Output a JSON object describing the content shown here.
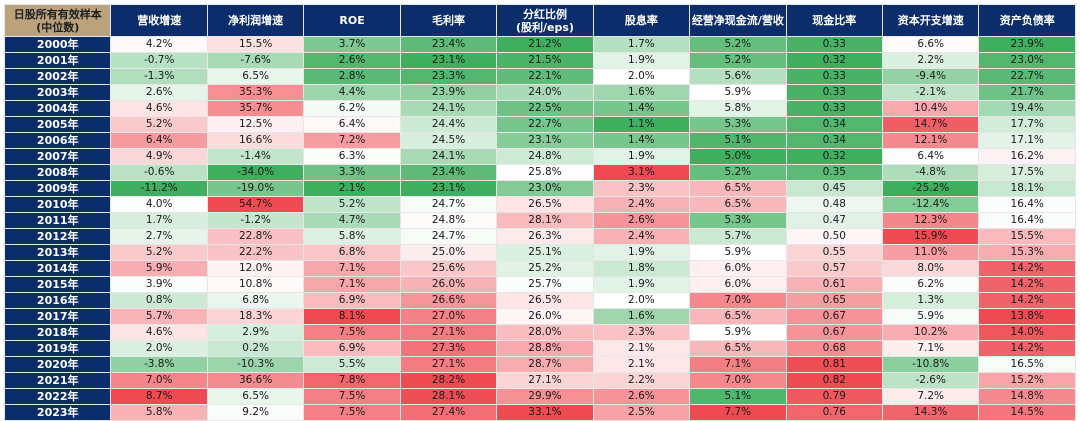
{
  "colors": {
    "header_bg": "#0c2d6b",
    "corner_bg": "#b9a27c",
    "high": "#3fae5e",
    "low": "#ee4a52",
    "mid": "#ffffff"
  },
  "chart_data": {
    "type": "table",
    "title_line1": "日股所有有效样本",
    "title_line2": "(中位数)",
    "columns": [
      {
        "line1": "营收增速",
        "line2": "",
        "fmt": "pct",
        "dir": "low_green"
      },
      {
        "line1": "净利润增速",
        "line2": "",
        "fmt": "pct",
        "dir": "low_green"
      },
      {
        "line1": "ROE",
        "line2": "",
        "fmt": "pct",
        "dir": "low_green"
      },
      {
        "line1": "毛利率",
        "line2": "",
        "fmt": "pct",
        "dir": "low_green"
      },
      {
        "line1": "分红比例",
        "line2": "(股利/eps)",
        "fmt": "pct",
        "dir": "low_green"
      },
      {
        "line1": "股息率",
        "line2": "",
        "fmt": "pct",
        "dir": "low_green"
      },
      {
        "line1": "经营净现金流/营收",
        "line2": "",
        "fmt": "pct",
        "dir": "low_green"
      },
      {
        "line1": "现金比率",
        "line2": "",
        "fmt": "num",
        "dir": "low_green"
      },
      {
        "line1": "资本开支增速",
        "line2": "",
        "fmt": "pct",
        "dir": "low_green"
      },
      {
        "line1": "资产负债率",
        "line2": "",
        "fmt": "pct",
        "dir": "high_green"
      }
    ],
    "rows": [
      {
        "year": "2000年",
        "values": [
          4.2,
          15.5,
          3.7,
          23.4,
          21.2,
          1.7,
          5.2,
          0.33,
          6.6,
          23.9
        ]
      },
      {
        "year": "2001年",
        "values": [
          -0.7,
          -7.6,
          2.6,
          23.1,
          21.5,
          1.9,
          5.2,
          0.32,
          2.2,
          23.0
        ]
      },
      {
        "year": "2002年",
        "values": [
          -1.3,
          6.5,
          2.8,
          23.3,
          22.1,
          2.0,
          5.6,
          0.33,
          -9.4,
          22.7
        ]
      },
      {
        "year": "2003年",
        "values": [
          2.6,
          35.3,
          4.4,
          23.9,
          24.0,
          1.6,
          5.9,
          0.33,
          -2.1,
          21.7
        ]
      },
      {
        "year": "2004年",
        "values": [
          4.6,
          35.7,
          6.2,
          24.1,
          22.5,
          1.4,
          5.8,
          0.33,
          10.4,
          19.4
        ]
      },
      {
        "year": "2005年",
        "values": [
          5.2,
          12.5,
          6.4,
          24.4,
          22.7,
          1.1,
          5.3,
          0.34,
          14.7,
          17.7
        ]
      },
      {
        "year": "2006年",
        "values": [
          6.4,
          16.6,
          7.2,
          24.5,
          23.1,
          1.4,
          5.1,
          0.34,
          12.1,
          17.1
        ]
      },
      {
        "year": "2007年",
        "values": [
          4.9,
          -1.4,
          6.3,
          24.1,
          24.8,
          1.9,
          5.0,
          0.32,
          6.4,
          16.2
        ]
      },
      {
        "year": "2008年",
        "values": [
          -0.6,
          -34.0,
          3.3,
          23.4,
          25.8,
          3.1,
          5.2,
          0.35,
          -4.8,
          17.5
        ]
      },
      {
        "year": "2009年",
        "values": [
          -11.2,
          -19.0,
          2.1,
          23.1,
          23.0,
          2.3,
          6.5,
          0.45,
          -25.2,
          18.1
        ]
      },
      {
        "year": "2010年",
        "values": [
          4.0,
          54.7,
          5.2,
          24.7,
          26.5,
          2.4,
          6.5,
          0.48,
          -12.4,
          16.4
        ]
      },
      {
        "year": "2011年",
        "values": [
          1.7,
          -1.2,
          4.7,
          24.8,
          28.1,
          2.6,
          5.3,
          0.47,
          12.3,
          16.4
        ]
      },
      {
        "year": "2012年",
        "values": [
          2.7,
          22.8,
          5.8,
          24.7,
          26.3,
          2.4,
          5.7,
          0.5,
          15.9,
          15.5
        ]
      },
      {
        "year": "2013年",
        "values": [
          5.2,
          22.2,
          6.8,
          25.0,
          25.1,
          1.9,
          5.9,
          0.55,
          11.0,
          15.3
        ]
      },
      {
        "year": "2014年",
        "values": [
          5.9,
          12.0,
          7.1,
          25.6,
          25.2,
          1.8,
          6.0,
          0.57,
          8.0,
          14.2
        ]
      },
      {
        "year": "2015年",
        "values": [
          3.9,
          10.8,
          7.1,
          26.0,
          25.7,
          1.9,
          6.0,
          0.61,
          6.2,
          14.2
        ]
      },
      {
        "year": "2016年",
        "values": [
          0.8,
          6.8,
          6.9,
          26.6,
          26.5,
          2.0,
          7.0,
          0.65,
          1.3,
          14.2
        ]
      },
      {
        "year": "2017年",
        "values": [
          5.7,
          18.3,
          8.1,
          27.0,
          26.0,
          1.6,
          6.5,
          0.67,
          5.9,
          13.8
        ]
      },
      {
        "year": "2018年",
        "values": [
          4.6,
          2.9,
          7.5,
          27.1,
          28.0,
          2.3,
          5.9,
          0.67,
          10.2,
          14.0
        ]
      },
      {
        "year": "2019年",
        "values": [
          2.0,
          0.2,
          6.9,
          27.3,
          28.8,
          2.1,
          6.5,
          0.68,
          7.1,
          14.2
        ]
      },
      {
        "year": "2020年",
        "values": [
          -3.8,
          -10.3,
          5.5,
          27.1,
          28.7,
          2.1,
          7.1,
          0.81,
          -10.8,
          16.5
        ]
      },
      {
        "year": "2021年",
        "values": [
          7.0,
          36.6,
          7.8,
          28.2,
          27.1,
          2.2,
          7.0,
          0.82,
          -2.6,
          15.2
        ]
      },
      {
        "year": "2022年",
        "values": [
          8.7,
          6.5,
          7.5,
          28.1,
          29.9,
          2.6,
          5.1,
          0.79,
          7.2,
          14.8
        ]
      },
      {
        "year": "2023年",
        "values": [
          5.8,
          9.2,
          7.5,
          27.4,
          33.1,
          2.5,
          7.7,
          0.76,
          14.3,
          14.5
        ]
      }
    ]
  }
}
